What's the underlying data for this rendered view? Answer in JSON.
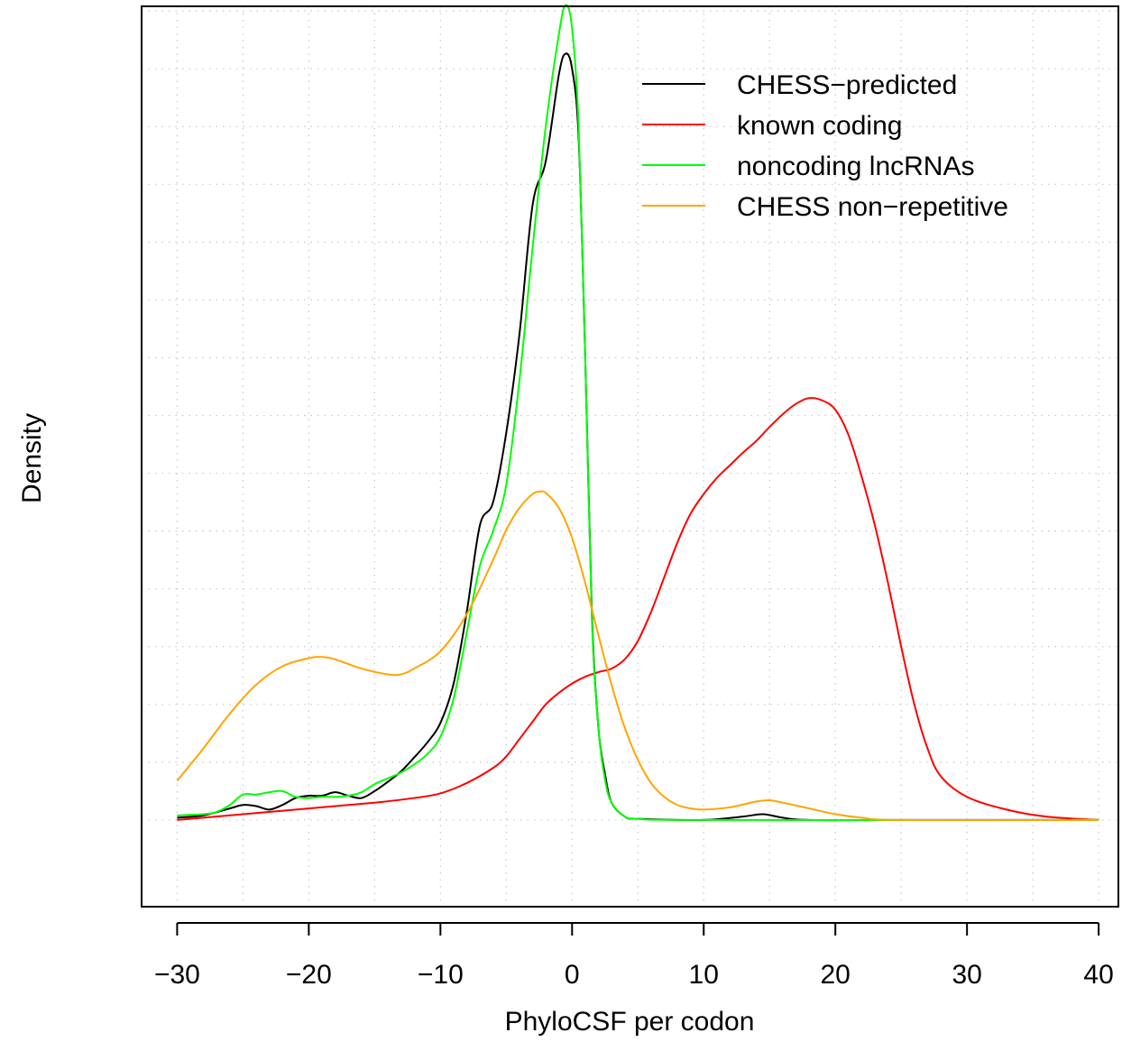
{
  "chart_data": {
    "type": "line",
    "xlabel": "PhyloCSF per codon",
    "ylabel": "Density",
    "xlim": [
      -32.7,
      41.5
    ],
    "ylim": [
      -0.0075,
      0.0704
    ],
    "x_ticks": [
      -30,
      -20,
      -10,
      0,
      10,
      20,
      30,
      40
    ],
    "x_tick_labels": [
      "−30",
      "−20",
      "−10",
      "0",
      "10",
      "20",
      "30",
      "40"
    ],
    "y_ticks_show_labels": false,
    "grid": true,
    "legend": "top-right",
    "series": [
      {
        "name": "CHESS−predicted",
        "color": "#000000",
        "points": [
          [
            -30,
            0.0002
          ],
          [
            -28,
            0.0004
          ],
          [
            -26,
            0.001
          ],
          [
            -25,
            0.0013
          ],
          [
            -24,
            0.0012
          ],
          [
            -23,
            0.0009
          ],
          [
            -22,
            0.0013
          ],
          [
            -21,
            0.0019
          ],
          [
            -20,
            0.0021
          ],
          [
            -19,
            0.0021
          ],
          [
            -18,
            0.0024
          ],
          [
            -17,
            0.0021
          ],
          [
            -16,
            0.0019
          ],
          [
            -15,
            0.0025
          ],
          [
            -14,
            0.0033
          ],
          [
            -13,
            0.0042
          ],
          [
            -12,
            0.0054
          ],
          [
            -11,
            0.0067
          ],
          [
            -10,
            0.0084
          ],
          [
            -9,
            0.0118
          ],
          [
            -8,
            0.018
          ],
          [
            -7,
            0.0255
          ],
          [
            -6,
            0.0275
          ],
          [
            -5,
            0.0335
          ],
          [
            -4,
            0.042
          ],
          [
            -3,
            0.0532
          ],
          [
            -2,
            0.057
          ],
          [
            -1,
            0.0645
          ],
          [
            -0.5,
            0.0663
          ],
          [
            0,
            0.065
          ],
          [
            0.5,
            0.059
          ],
          [
            1,
            0.04
          ],
          [
            1.5,
            0.018
          ],
          [
            2,
            0.008
          ],
          [
            2.5,
            0.004
          ],
          [
            3,
            0.0015
          ],
          [
            4,
            0.0003
          ],
          [
            5,
            0.0001
          ],
          [
            10,
            0.0
          ],
          [
            13,
            0.0003
          ],
          [
            14.5,
            0.0005
          ],
          [
            16,
            0.0002
          ],
          [
            18,
            0.0
          ],
          [
            25,
            0.0
          ],
          [
            40,
            0.0
          ]
        ]
      },
      {
        "name": "known coding",
        "color": "#ff0000",
        "points": [
          [
            -30,
            0.0
          ],
          [
            -25,
            0.0005
          ],
          [
            -20,
            0.001
          ],
          [
            -15,
            0.0015
          ],
          [
            -12,
            0.0019
          ],
          [
            -10,
            0.0023
          ],
          [
            -8,
            0.0032
          ],
          [
            -6,
            0.0045
          ],
          [
            -5,
            0.0055
          ],
          [
            -4,
            0.007
          ],
          [
            -3,
            0.0085
          ],
          [
            -2,
            0.01
          ],
          [
            -1,
            0.011
          ],
          [
            0,
            0.0118
          ],
          [
            1,
            0.0124
          ],
          [
            2,
            0.0128
          ],
          [
            3,
            0.0131
          ],
          [
            4,
            0.0139
          ],
          [
            5,
            0.0155
          ],
          [
            6,
            0.018
          ],
          [
            7,
            0.021
          ],
          [
            8,
            0.024
          ],
          [
            9,
            0.0265
          ],
          [
            10,
            0.0282
          ],
          [
            11,
            0.0296
          ],
          [
            12,
            0.0307
          ],
          [
            13,
            0.0318
          ],
          [
            14,
            0.0328
          ],
          [
            15,
            0.034
          ],
          [
            16,
            0.0351
          ],
          [
            17,
            0.036
          ],
          [
            18,
            0.0365
          ],
          [
            19,
            0.0363
          ],
          [
            20,
            0.0355
          ],
          [
            21,
            0.0333
          ],
          [
            22,
            0.0297
          ],
          [
            23,
            0.0255
          ],
          [
            24,
            0.0205
          ],
          [
            25,
            0.015
          ],
          [
            26,
            0.01
          ],
          [
            27,
            0.0062
          ],
          [
            28,
            0.0038
          ],
          [
            30,
            0.002
          ],
          [
            33,
            0.0009
          ],
          [
            36,
            0.0003
          ],
          [
            40,
            0.0
          ]
        ]
      },
      {
        "name": "noncoding lncRNAs",
        "color": "#00ff00",
        "points": [
          [
            -30,
            0.0004
          ],
          [
            -28,
            0.0005
          ],
          [
            -27,
            0.0007
          ],
          [
            -26,
            0.0013
          ],
          [
            -25,
            0.0022
          ],
          [
            -24,
            0.0022
          ],
          [
            -23,
            0.0024
          ],
          [
            -22,
            0.0025
          ],
          [
            -21,
            0.002
          ],
          [
            -20,
            0.0019
          ],
          [
            -19,
            0.002
          ],
          [
            -18,
            0.002
          ],
          [
            -17,
            0.0021
          ],
          [
            -16,
            0.0024
          ],
          [
            -15,
            0.0031
          ],
          [
            -14,
            0.0036
          ],
          [
            -13,
            0.0041
          ],
          [
            -12,
            0.0048
          ],
          [
            -11,
            0.0057
          ],
          [
            -10,
            0.0072
          ],
          [
            -9,
            0.0105
          ],
          [
            -8,
            0.0162
          ],
          [
            -7,
            0.022
          ],
          [
            -6,
            0.025
          ],
          [
            -5,
            0.029
          ],
          [
            -4,
            0.038
          ],
          [
            -3,
            0.0495
          ],
          [
            -2,
            0.06
          ],
          [
            -1,
            0.068
          ],
          [
            -0.5,
            0.0705
          ],
          [
            0,
            0.0685
          ],
          [
            0.5,
            0.06
          ],
          [
            1,
            0.04
          ],
          [
            1.5,
            0.0175
          ],
          [
            2,
            0.008
          ],
          [
            2.5,
            0.0035
          ],
          [
            3,
            0.0015
          ],
          [
            4,
            0.0003
          ],
          [
            5,
            0.0001
          ],
          [
            10,
            0.0
          ],
          [
            40,
            0.0
          ]
        ]
      },
      {
        "name": "CHESS non−repetitive",
        "color": "#ffa500",
        "points": [
          [
            -30,
            0.0034
          ],
          [
            -28,
            0.0062
          ],
          [
            -26,
            0.0092
          ],
          [
            -24,
            0.0117
          ],
          [
            -22,
            0.0133
          ],
          [
            -20,
            0.014
          ],
          [
            -19,
            0.0141
          ],
          [
            -18,
            0.0139
          ],
          [
            -16,
            0.0131
          ],
          [
            -14,
            0.0126
          ],
          [
            -13,
            0.0126
          ],
          [
            -12,
            0.0131
          ],
          [
            -10,
            0.0146
          ],
          [
            -8,
            0.0178
          ],
          [
            -6,
            0.0225
          ],
          [
            -5,
            0.0251
          ],
          [
            -4,
            0.027
          ],
          [
            -3,
            0.0282
          ],
          [
            -2.5,
            0.0284
          ],
          [
            -2,
            0.0283
          ],
          [
            -1,
            0.027
          ],
          [
            0,
            0.0244
          ],
          [
            1,
            0.0205
          ],
          [
            2,
            0.016
          ],
          [
            3,
            0.0117
          ],
          [
            4,
            0.008
          ],
          [
            5,
            0.0052
          ],
          [
            6,
            0.0032
          ],
          [
            7,
            0.002
          ],
          [
            8,
            0.0013
          ],
          [
            9,
            0.001
          ],
          [
            10,
            0.0009
          ],
          [
            12,
            0.0011
          ],
          [
            14,
            0.0016
          ],
          [
            15,
            0.0017
          ],
          [
            16,
            0.0015
          ],
          [
            18,
            0.001
          ],
          [
            20,
            0.0005
          ],
          [
            22,
            0.0002
          ],
          [
            25,
            0.0
          ],
          [
            40,
            0.0
          ]
        ]
      }
    ]
  }
}
